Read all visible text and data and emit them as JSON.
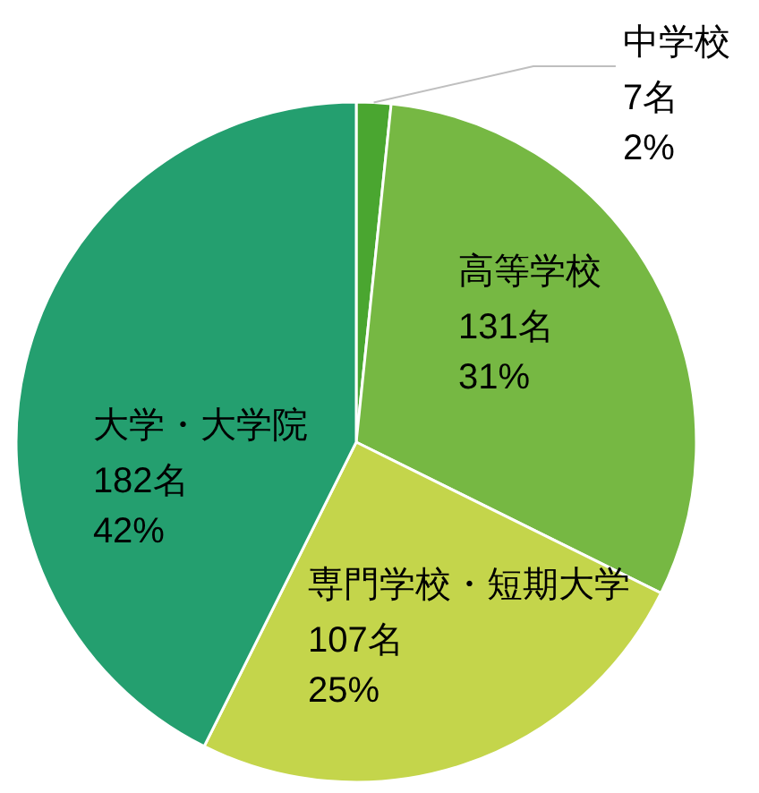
{
  "chart_data": {
    "type": "pie",
    "categories": [
      "中学校",
      "高等学校",
      "専門学校・短期大学",
      "大学・大学院"
    ],
    "values": [
      7,
      131,
      107,
      182
    ],
    "colors": [
      "#4aa630",
      "#76b843",
      "#c4d54b",
      "#249f6f"
    ],
    "value_labels": [
      "7名\n2%",
      "131名\n31%",
      "107名\n25%",
      "182名\n42%"
    ]
  }
}
